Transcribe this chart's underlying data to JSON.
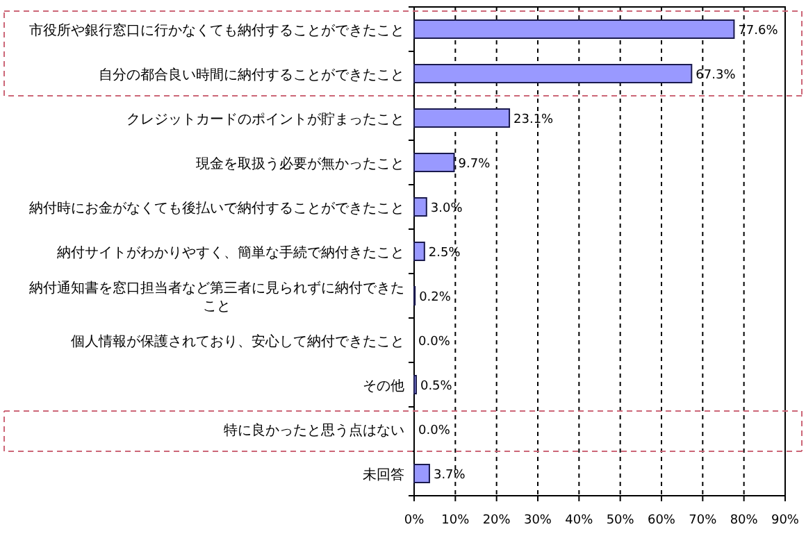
{
  "chart_data": {
    "type": "bar",
    "orientation": "horizontal",
    "color": "#9999ff",
    "categories": [
      "市役所や銀行窓口に行かなくても納付することができたこと",
      "自分の都合良い時間に納付することができたこと",
      "クレジットカードのポイントが貯まったこと",
      "現金を取扱う必要が無かったこと",
      "納付時にお金がなくても後払いで納付することができたこと",
      "納付サイトがわかりやすく、簡単な手続で納付きたこと",
      "納付通知書を窓口担当者など第三者に見られずに納付できたこと",
      "個人情報が保護されており、安心して納付できたこと",
      "その他",
      "特に良かったと思う点はない",
      "未回答"
    ],
    "values": [
      77.6,
      67.3,
      23.1,
      9.7,
      3.0,
      2.5,
      0.2,
      0.0,
      0.5,
      0.0,
      3.7
    ],
    "value_labels": [
      "77.6%",
      "67.3%",
      "23.1%",
      "9.7%",
      "3.0%",
      "2.5%",
      "0.2%",
      "0.0%",
      "0.5%",
      "0.0%",
      "3.7%"
    ],
    "xlim": [
      0,
      90
    ],
    "xticks": [
      {
        "value": 0,
        "label": "0%"
      },
      {
        "value": 10,
        "label": "10%"
      },
      {
        "value": 20,
        "label": "20%"
      },
      {
        "value": 30,
        "label": "30%"
      },
      {
        "value": 40,
        "label": "40%"
      },
      {
        "value": 50,
        "label": "50%"
      },
      {
        "value": 60,
        "label": "60%"
      },
      {
        "value": 70,
        "label": "70%"
      },
      {
        "value": 80,
        "label": "80%"
      },
      {
        "value": 90,
        "label": "90%"
      }
    ],
    "grid": "x"
  }
}
